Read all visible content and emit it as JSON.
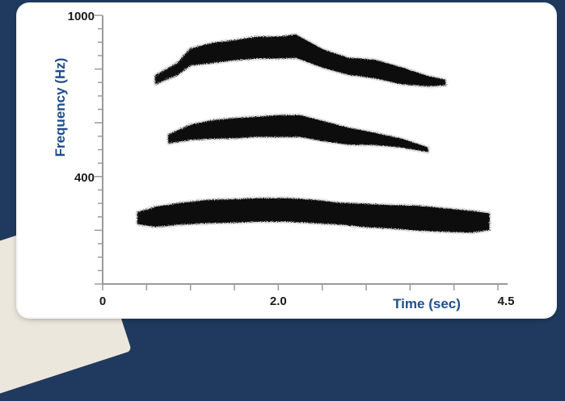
{
  "chart_data": {
    "type": "heatmap",
    "title": "",
    "xlabel": "Time (sec)",
    "ylabel": "Frequency (Hz)",
    "xlim": [
      0,
      4.5
    ],
    "ylim": [
      0,
      1000
    ],
    "x_ticks": [
      "0",
      "2.0",
      "4.5"
    ],
    "y_ticks": [
      "1000",
      "400"
    ],
    "grid": false,
    "colors": {
      "ink": "#111111",
      "axis_title": "#1f4e8c",
      "frame_bg": "#ffffff",
      "page_bg": "#1f3a5e"
    },
    "series": [
      {
        "x": [
          0.6,
          0.85,
          1.0,
          1.25,
          1.5,
          1.75,
          2.0,
          2.2,
          2.5,
          2.8,
          3.1,
          3.4,
          3.7,
          3.9
        ],
        "y": [
          760,
          800,
          845,
          860,
          870,
          880,
          880,
          885,
          840,
          810,
          800,
          775,
          755,
          750
        ],
        "width": [
          10,
          14,
          20,
          24,
          24,
          26,
          26,
          28,
          22,
          20,
          22,
          20,
          12,
          6
        ]
      },
      {
        "x": [
          0.75,
          1.0,
          1.25,
          1.5,
          1.75,
          2.0,
          2.25,
          2.5,
          2.8,
          3.1,
          3.4,
          3.7
        ],
        "y": [
          540,
          565,
          575,
          580,
          585,
          588,
          588,
          570,
          550,
          540,
          525,
          500
        ],
        "width": [
          10,
          18,
          22,
          24,
          24,
          26,
          26,
          24,
          20,
          14,
          10,
          5
        ]
      },
      {
        "x": [
          0.4,
          0.6,
          0.9,
          1.2,
          1.5,
          1.8,
          2.1,
          2.4,
          2.7,
          3.0,
          3.3,
          3.6,
          3.9,
          4.2,
          4.4
        ],
        "y": [
          245,
          250,
          262,
          270,
          272,
          276,
          276,
          270,
          262,
          255,
          250,
          245,
          238,
          232,
          232
        ],
        "width": [
          14,
          24,
          26,
          28,
          28,
          28,
          28,
          28,
          26,
          28,
          28,
          30,
          28,
          26,
          20
        ]
      }
    ]
  }
}
